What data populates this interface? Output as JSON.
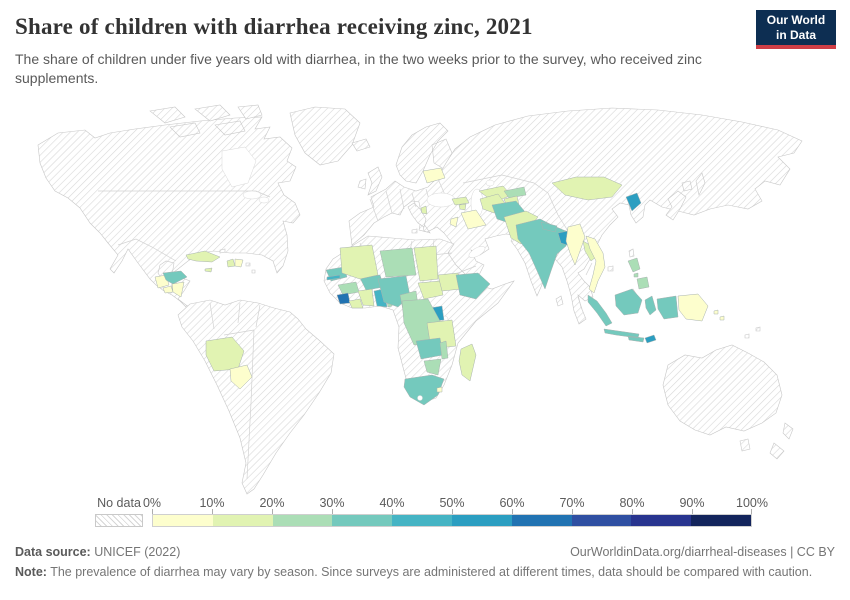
{
  "header": {
    "title": "Share of children with diarrhea receiving zinc, 2021",
    "subtitle": "The share of children under five years old with diarrhea, in the two weeks prior to the survey, who received zinc supplements."
  },
  "logo": {
    "line1": "Our World",
    "line2": "in Data",
    "background": "#0d2e52",
    "accent": "#cf3e46"
  },
  "legend": {
    "no_data_label": "No data",
    "tick_labels": [
      "0%",
      "10%",
      "20%",
      "30%",
      "40%",
      "50%",
      "60%",
      "70%",
      "80%",
      "90%",
      "100%"
    ],
    "colors": [
      "#fdfecd",
      "#e1f3b2",
      "#abdeb6",
      "#74c9bd",
      "#45b4c4",
      "#2b9ec1",
      "#2173b2",
      "#2f4fa2",
      "#28348f",
      "#13245c"
    ]
  },
  "footer": {
    "source_label": "Data source:",
    "source_value": "UNICEF (2022)",
    "link": "OurWorldinData.org/diarrheal-diseases | CC BY",
    "note_label": "Note:",
    "note_text": "The prevalence of diarrhea may vary by season. Since surveys are administered at different times, data should be compared with caution."
  },
  "chart_data": {
    "type": "choropleth_map",
    "title": "Share of children with diarrhea receiving zinc, 2021",
    "unit": "% of children under five with diarrhea who received zinc supplements",
    "bins": [
      "0-10%",
      "10-20%",
      "20-30%",
      "30-40%",
      "40-50%",
      "50-60%",
      "60-70%",
      "70-80%",
      "80-90%",
      "90-100%"
    ],
    "no_data_label": "No data",
    "countries": [
      {
        "name": "Guatemala",
        "range": "0-10%"
      },
      {
        "name": "Honduras",
        "range": "30-40%"
      },
      {
        "name": "El Salvador",
        "range": "0-10%"
      },
      {
        "name": "Nicaragua",
        "range": "0-10%"
      },
      {
        "name": "Cuba",
        "range": "10-20%"
      },
      {
        "name": "Jamaica",
        "range": "10-20%"
      },
      {
        "name": "Haiti",
        "range": "10-20%"
      },
      {
        "name": "Dominican Republic",
        "range": "0-10%"
      },
      {
        "name": "Bolivia",
        "range": "10-20%"
      },
      {
        "name": "Paraguay",
        "range": "0-10%"
      },
      {
        "name": "Belarus",
        "range": "0-10%"
      },
      {
        "name": "Albania",
        "range": "10-20%"
      },
      {
        "name": "Georgia",
        "range": "10-20%"
      },
      {
        "name": "Armenia",
        "range": "10-20%"
      },
      {
        "name": "Jordan",
        "range": "0-10%"
      },
      {
        "name": "Iraq",
        "range": "0-10%"
      },
      {
        "name": "Turkmenistan",
        "range": "10-20%"
      },
      {
        "name": "Uzbekistan",
        "range": "10-20%"
      },
      {
        "name": "Kyrgyzstan",
        "range": "20-30%"
      },
      {
        "name": "Tajikistan",
        "range": "10-20%"
      },
      {
        "name": "Afghanistan",
        "range": "30-40%"
      },
      {
        "name": "Pakistan",
        "range": "10-20%"
      },
      {
        "name": "India",
        "range": "30-40%"
      },
      {
        "name": "Nepal",
        "range": "30-40%"
      },
      {
        "name": "Bangladesh",
        "range": "50-60%"
      },
      {
        "name": "Myanmar",
        "range": "0-10%"
      },
      {
        "name": "Laos",
        "range": "10-20%"
      },
      {
        "name": "Vietnam",
        "range": "0-10%"
      },
      {
        "name": "Mongolia",
        "range": "10-20%"
      },
      {
        "name": "North Korea",
        "range": "50-60%"
      },
      {
        "name": "Philippines",
        "range": "20-30%"
      },
      {
        "name": "Indonesia",
        "range": "30-40%"
      },
      {
        "name": "Timor-Leste",
        "range": "50-60%"
      },
      {
        "name": "Papua New Guinea",
        "range": "0-10%"
      },
      {
        "name": "Solomon Islands",
        "range": "0-10%"
      },
      {
        "name": "Senegal",
        "range": "30-40%"
      },
      {
        "name": "Gambia",
        "range": "40-50%"
      },
      {
        "name": "Guinea",
        "range": "20-30%"
      },
      {
        "name": "Sierra Leone",
        "range": "60-70%"
      },
      {
        "name": "Liberia",
        "range": "10-20%"
      },
      {
        "name": "Cote d'Ivoire",
        "range": "10-20%"
      },
      {
        "name": "Ghana",
        "range": "40-50%"
      },
      {
        "name": "Togo",
        "range": "20-30%"
      },
      {
        "name": "Benin",
        "range": "20-30%"
      },
      {
        "name": "Burkina Faso",
        "range": "30-40%"
      },
      {
        "name": "Mali",
        "range": "10-20%"
      },
      {
        "name": "Niger",
        "range": "20-30%"
      },
      {
        "name": "Nigeria",
        "range": "30-40%"
      },
      {
        "name": "Chad",
        "range": "10-20%"
      },
      {
        "name": "Cameroon",
        "range": "20-30%"
      },
      {
        "name": "Central African Republic",
        "range": "10-20%"
      },
      {
        "name": "South Sudan",
        "range": "10-20%"
      },
      {
        "name": "Ethiopia",
        "range": "30-40%"
      },
      {
        "name": "Uganda",
        "range": "50-60%"
      },
      {
        "name": "Democratic Republic of Congo",
        "range": "20-30%"
      },
      {
        "name": "Tanzania",
        "range": "10-20%"
      },
      {
        "name": "Zambia",
        "range": "30-40%"
      },
      {
        "name": "Malawi",
        "range": "20-30%"
      },
      {
        "name": "Zimbabwe",
        "range": "20-30%"
      },
      {
        "name": "Madagascar",
        "range": "10-20%"
      },
      {
        "name": "South Africa",
        "range": "30-40%"
      },
      {
        "name": "Eswatini",
        "range": "0-10%"
      }
    ]
  }
}
